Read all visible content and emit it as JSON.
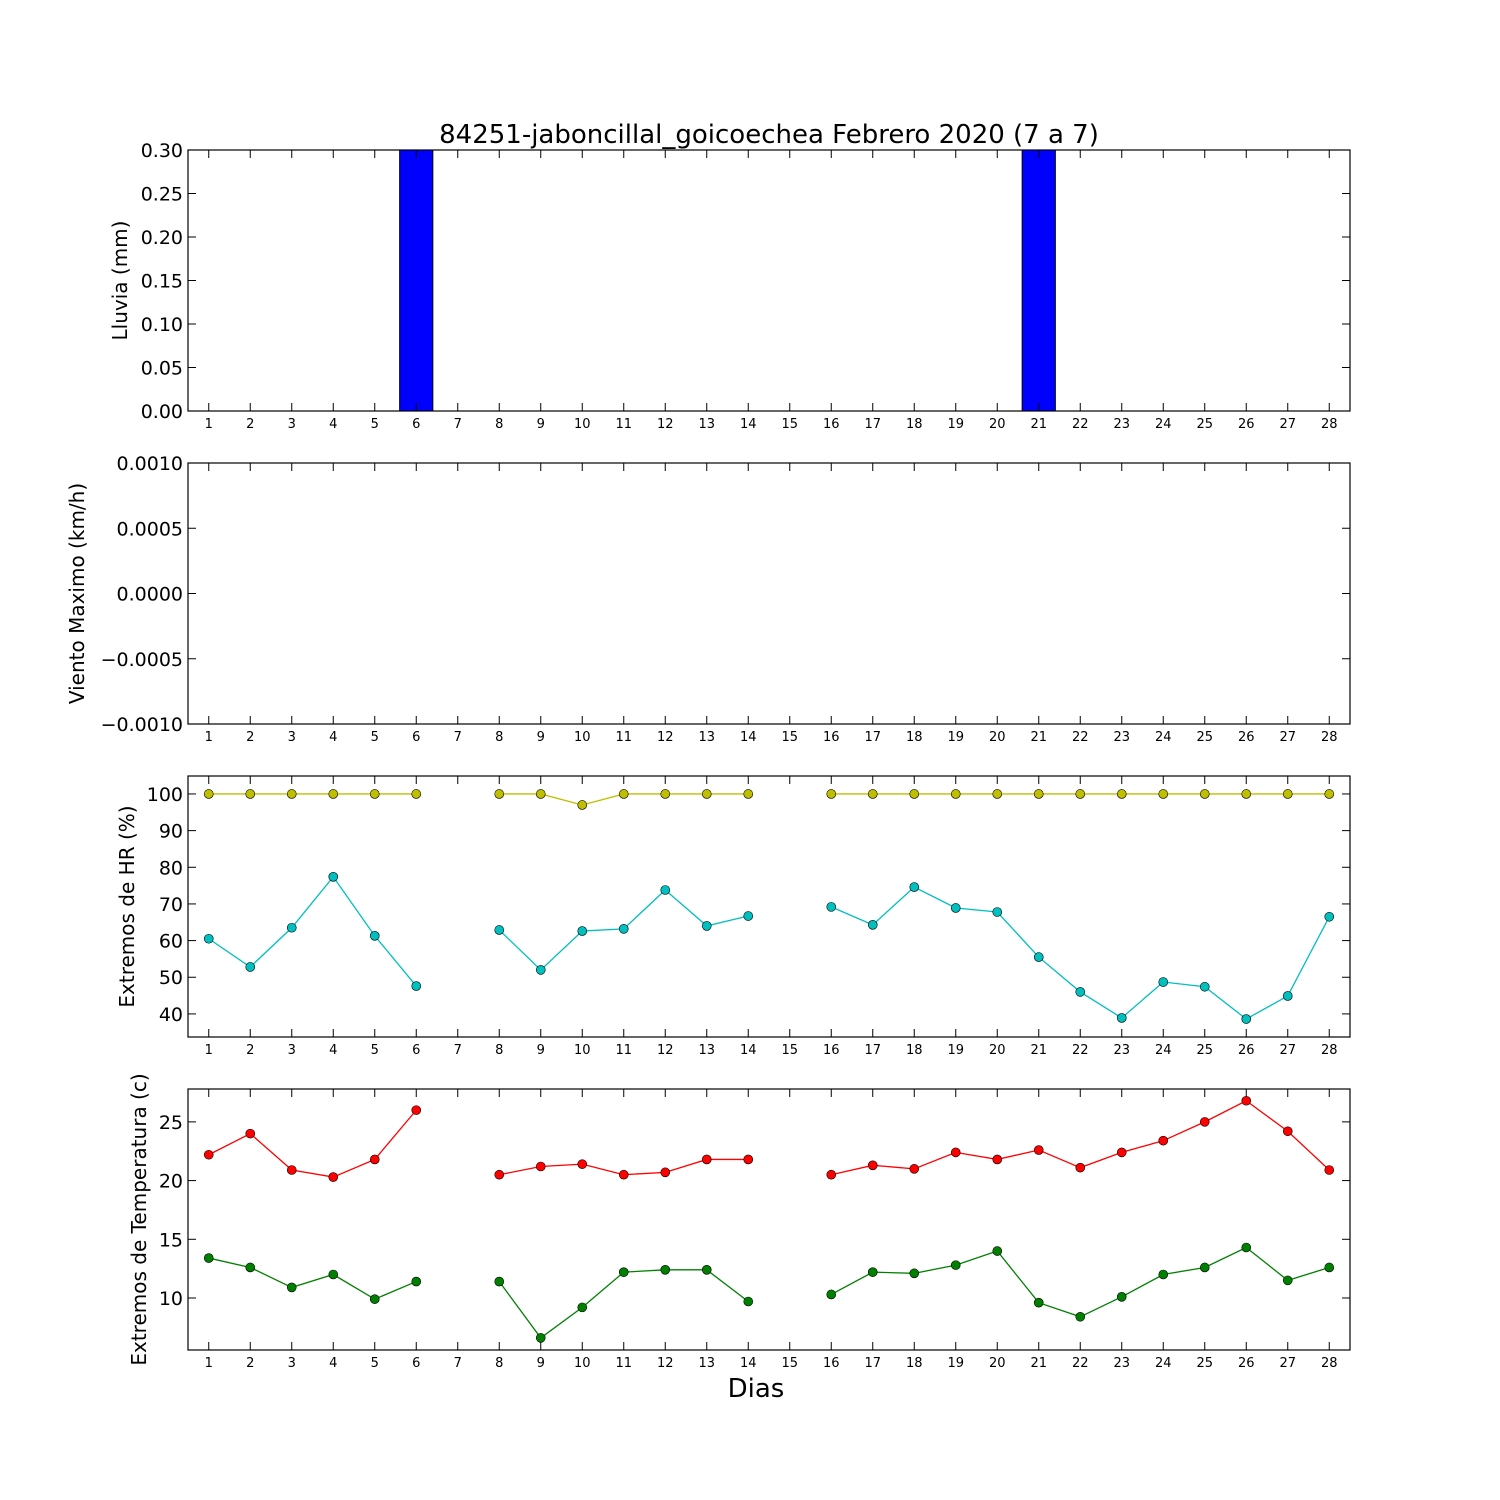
{
  "chart_data": [
    {
      "type": "bar",
      "title": "84251-jaboncillal_goicoechea Febrero 2020  (7 a 7)",
      "ylabel": "Lluvia (mm)",
      "x": [
        1,
        2,
        3,
        4,
        5,
        6,
        7,
        8,
        9,
        10,
        11,
        12,
        13,
        14,
        15,
        16,
        17,
        18,
        19,
        20,
        21,
        22,
        23,
        24,
        25,
        26,
        27,
        28
      ],
      "values": [
        0,
        0,
        0,
        0,
        0,
        0.3,
        null,
        0,
        0,
        0,
        0,
        0,
        0,
        0,
        null,
        0,
        0,
        0,
        0,
        0,
        0.3,
        0,
        0,
        0,
        0,
        0,
        0,
        0
      ],
      "color": "#0000ff",
      "bar_width": 0.8,
      "xlim": [
        0.5,
        28.5
      ],
      "xticks": [
        1,
        2,
        3,
        4,
        5,
        6,
        7,
        8,
        9,
        10,
        11,
        12,
        13,
        14,
        15,
        16,
        17,
        18,
        19,
        20,
        21,
        22,
        23,
        24,
        25,
        26,
        27,
        28
      ],
      "ylim": [
        0,
        0.3
      ],
      "yticks": [
        {
          "value": 0,
          "label": "0.00"
        },
        {
          "value": 0.05,
          "label": "0.05"
        },
        {
          "value": 0.1,
          "label": "0.10"
        },
        {
          "value": 0.15,
          "label": "0.15"
        },
        {
          "value": 0.2,
          "label": "0.20"
        },
        {
          "value": 0.25,
          "label": "0.25"
        },
        {
          "value": 0.3,
          "label": "0.30"
        }
      ]
    },
    {
      "type": "line",
      "ylabel": "Viento Maximo (km/h)",
      "xlim": [
        0.5,
        28.5
      ],
      "xticks": [
        1,
        2,
        3,
        4,
        5,
        6,
        7,
        8,
        9,
        10,
        11,
        12,
        13,
        14,
        15,
        16,
        17,
        18,
        19,
        20,
        21,
        22,
        23,
        24,
        25,
        26,
        27,
        28
      ],
      "ylim": [
        -0.001,
        0.001
      ],
      "yticks": [
        {
          "value": -0.001,
          "label": "−0.0010"
        },
        {
          "value": -0.0005,
          "label": "−0.0005"
        },
        {
          "value": 0,
          "label": "0.0000"
        },
        {
          "value": 0.0005,
          "label": "0.0005"
        },
        {
          "value": 0.001,
          "label": "0.0010"
        }
      ]
    },
    {
      "type": "line",
      "ylabel": "Extremos de HR (%)",
      "x": [
        1,
        2,
        3,
        4,
        5,
        6,
        7,
        8,
        9,
        10,
        11,
        12,
        13,
        14,
        15,
        16,
        17,
        18,
        19,
        20,
        21,
        22,
        23,
        24,
        25,
        26,
        27,
        28
      ],
      "series": [
        {
          "color": "#bfbf00",
          "values": [
            100,
            100,
            100,
            100,
            100,
            100,
            null,
            100,
            100,
            97,
            100,
            100,
            100,
            100,
            null,
            100,
            100,
            100,
            100,
            100,
            100,
            100,
            100,
            100,
            100,
            100,
            100,
            100
          ]
        },
        {
          "color": "#00bfbf",
          "values": [
            60.5,
            52.8,
            63.5,
            77.4,
            61.3,
            47.6,
            null,
            62.9,
            52.0,
            62.6,
            63.2,
            73.8,
            64.0,
            66.7,
            null,
            69.2,
            64.3,
            74.6,
            68.9,
            67.8,
            55.5,
            46.0,
            38.9,
            48.7,
            47.4,
            38.6,
            44.9,
            66.5
          ]
        }
      ],
      "xlim": [
        0.5,
        28.5
      ],
      "xticks": [
        1,
        2,
        3,
        4,
        5,
        6,
        7,
        8,
        9,
        10,
        11,
        12,
        13,
        14,
        15,
        16,
        17,
        18,
        19,
        20,
        21,
        22,
        23,
        24,
        25,
        26,
        27,
        28
      ],
      "ylim": [
        33.7,
        104.9
      ],
      "yticks": [
        40,
        50,
        60,
        70,
        80,
        90,
        100
      ]
    },
    {
      "type": "line",
      "ylabel": "Extremos de Temperatura (c)",
      "xlabel": "Dias",
      "x": [
        1,
        2,
        3,
        4,
        5,
        6,
        7,
        8,
        9,
        10,
        11,
        12,
        13,
        14,
        15,
        16,
        17,
        18,
        19,
        20,
        21,
        22,
        23,
        24,
        25,
        26,
        27,
        28
      ],
      "series": [
        {
          "color": "#ff0000",
          "values": [
            22.2,
            24.0,
            20.9,
            20.3,
            21.8,
            26.0,
            null,
            20.5,
            21.2,
            21.4,
            20.5,
            20.7,
            21.8,
            21.8,
            null,
            20.5,
            21.3,
            21.0,
            22.4,
            21.8,
            22.6,
            21.1,
            22.4,
            23.4,
            25.0,
            26.8,
            24.2,
            20.9
          ]
        },
        {
          "color": "#008000",
          "values": [
            13.4,
            12.6,
            10.9,
            12.0,
            9.9,
            11.4,
            null,
            11.4,
            6.6,
            9.2,
            12.2,
            12.4,
            12.4,
            9.7,
            null,
            10.3,
            12.2,
            12.1,
            12.8,
            14.0,
            9.6,
            8.4,
            10.1,
            12.0,
            12.6,
            14.3,
            11.5,
            12.6
          ]
        }
      ],
      "xlim": [
        0.5,
        28.5
      ],
      "xticks": [
        1,
        2,
        3,
        4,
        5,
        6,
        7,
        8,
        9,
        10,
        11,
        12,
        13,
        14,
        15,
        16,
        17,
        18,
        19,
        20,
        21,
        22,
        23,
        24,
        25,
        26,
        27,
        28
      ],
      "ylim": [
        5.57,
        27.8
      ],
      "yticks": [
        10,
        15,
        20,
        25
      ]
    }
  ]
}
